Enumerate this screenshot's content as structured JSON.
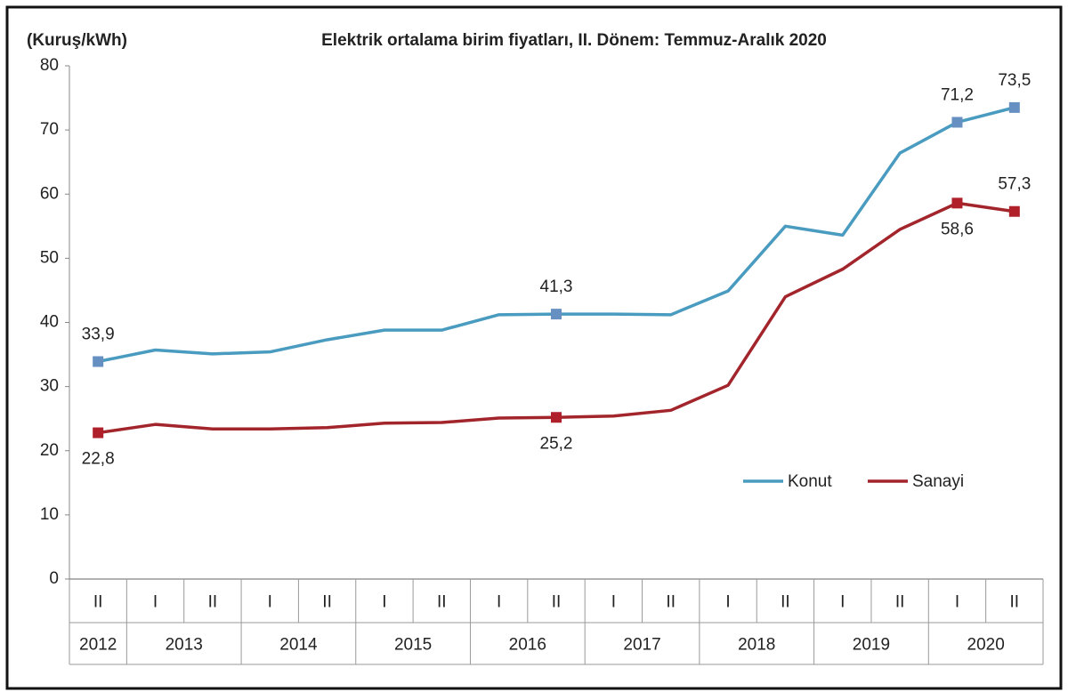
{
  "chart_data": {
    "type": "line",
    "title": "Elektrik ortalama birim fiyatları, II. Dönem: Temmuz-Aralık 2020",
    "y_label": "(Kuruş/kWh)",
    "categories": [
      "II",
      "I",
      "II",
      "I",
      "II",
      "I",
      "II",
      "I",
      "II",
      "I",
      "II",
      "I",
      "II",
      "I",
      "II",
      "I",
      "II"
    ],
    "category_groups": [
      {
        "label": "2012",
        "size": 1
      },
      {
        "label": "2013",
        "size": 2
      },
      {
        "label": "2014",
        "size": 2
      },
      {
        "label": "2015",
        "size": 2
      },
      {
        "label": "2016",
        "size": 2
      },
      {
        "label": "2017",
        "size": 2
      },
      {
        "label": "2018",
        "size": 2
      },
      {
        "label": "2019",
        "size": 2
      },
      {
        "label": "2020",
        "size": 2
      }
    ],
    "series": [
      {
        "name": "Konut",
        "color": "#4a9bc0",
        "marker_color": "#6690c2",
        "values": [
          33.9,
          35.7,
          35.1,
          35.4,
          37.3,
          38.8,
          38.8,
          41.2,
          41.3,
          41.3,
          41.2,
          44.9,
          55.0,
          53.6,
          66.4,
          71.2,
          73.5
        ],
        "value_labels": [
          "33,9",
          null,
          null,
          null,
          null,
          null,
          null,
          null,
          "41,3",
          null,
          null,
          null,
          null,
          null,
          null,
          "71,2",
          "73,5"
        ]
      },
      {
        "name": "Sanayi",
        "color": "#a3252c",
        "marker_color": "#b0202a",
        "values": [
          22.8,
          24.1,
          23.4,
          23.4,
          23.6,
          24.3,
          24.4,
          25.1,
          25.2,
          25.4,
          26.3,
          30.2,
          44.0,
          48.3,
          54.5,
          58.6,
          57.3
        ],
        "value_labels": [
          "22,8",
          null,
          null,
          null,
          null,
          null,
          null,
          null,
          "25,2",
          null,
          null,
          null,
          null,
          null,
          null,
          "58,6",
          "57,3"
        ]
      }
    ],
    "ylim": [
      0,
      80
    ],
    "yticks": [
      0,
      10,
      20,
      30,
      40,
      50,
      60,
      70,
      80
    ],
    "grid": false
  }
}
